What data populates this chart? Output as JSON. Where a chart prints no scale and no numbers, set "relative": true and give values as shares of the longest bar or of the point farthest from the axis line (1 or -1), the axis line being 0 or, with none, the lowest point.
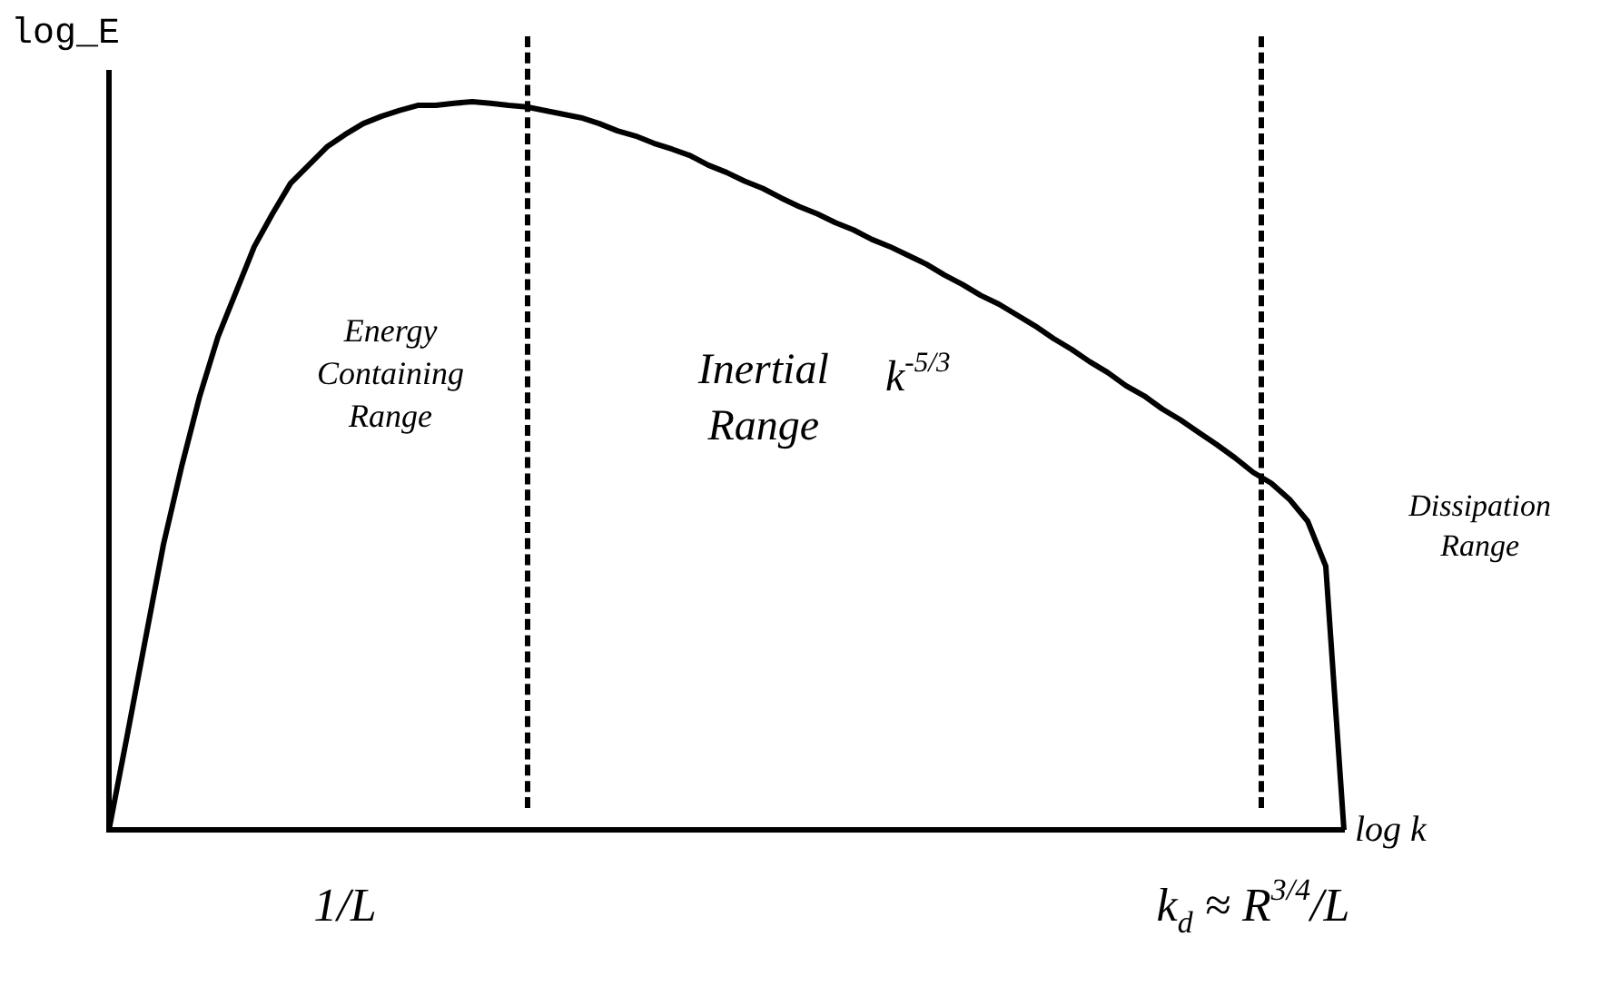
{
  "chart_data": {
    "type": "line",
    "relative": true,
    "xlabel": "log k",
    "ylabel": "log_E",
    "categories": [
      null,
      null,
      null,
      null,
      null,
      null,
      null,
      null,
      null,
      null,
      null,
      null,
      null,
      "1/L",
      null,
      null,
      null,
      null,
      null,
      null,
      null,
      null,
      null,
      null,
      null,
      null,
      null,
      null,
      null,
      null,
      null,
      null,
      null,
      null,
      null,
      null,
      null,
      null,
      null,
      null,
      null,
      null,
      null,
      null,
      null,
      null,
      null,
      null,
      null,
      null,
      null,
      null,
      null,
      null,
      null,
      null,
      null,
      null,
      null,
      null,
      null,
      null,
      null,
      "k$_{d}$ ≈ R$^{3/4}$/L",
      null,
      null,
      null,
      null,
      null
    ],
    "grid": false,
    "legend": false,
    "marker": "none",
    "line_style": "solid",
    "series": [
      {
        "color": "#000000",
        "values": [
          0,
          0.129,
          0.261,
          0.392,
          0.499,
          0.596,
          0.677,
          0.739,
          0.801,
          0.846,
          0.888,
          0.913,
          0.938,
          0.955,
          0.97,
          0.98,
          0.988,
          0.995,
          0.995,
          0.998,
          1.0,
          0.998,
          0.995,
          0.993,
          0.988,
          0.983,
          0.978,
          0.97,
          0.96,
          0.953,
          0.943,
          0.935,
          0.926,
          0.913,
          0.903,
          0.891,
          0.881,
          0.868,
          0.856,
          0.846,
          0.834,
          0.824,
          0.811,
          0.801,
          0.789,
          0.777,
          0.762,
          0.749,
          0.734,
          0.722,
          0.707,
          0.692,
          0.675,
          0.66,
          0.643,
          0.628,
          0.61,
          0.596,
          0.578,
          0.563,
          0.546,
          0.529,
          0.511,
          0.491,
          0.476,
          0.454,
          0.424,
          0.362,
          0
        ]
      }
    ],
    "annotations": [
      "Energy Containing Range",
      "Inertial Range",
      "k$^{-5/3}$",
      "Dissipation Range"
    ]
  }
}
